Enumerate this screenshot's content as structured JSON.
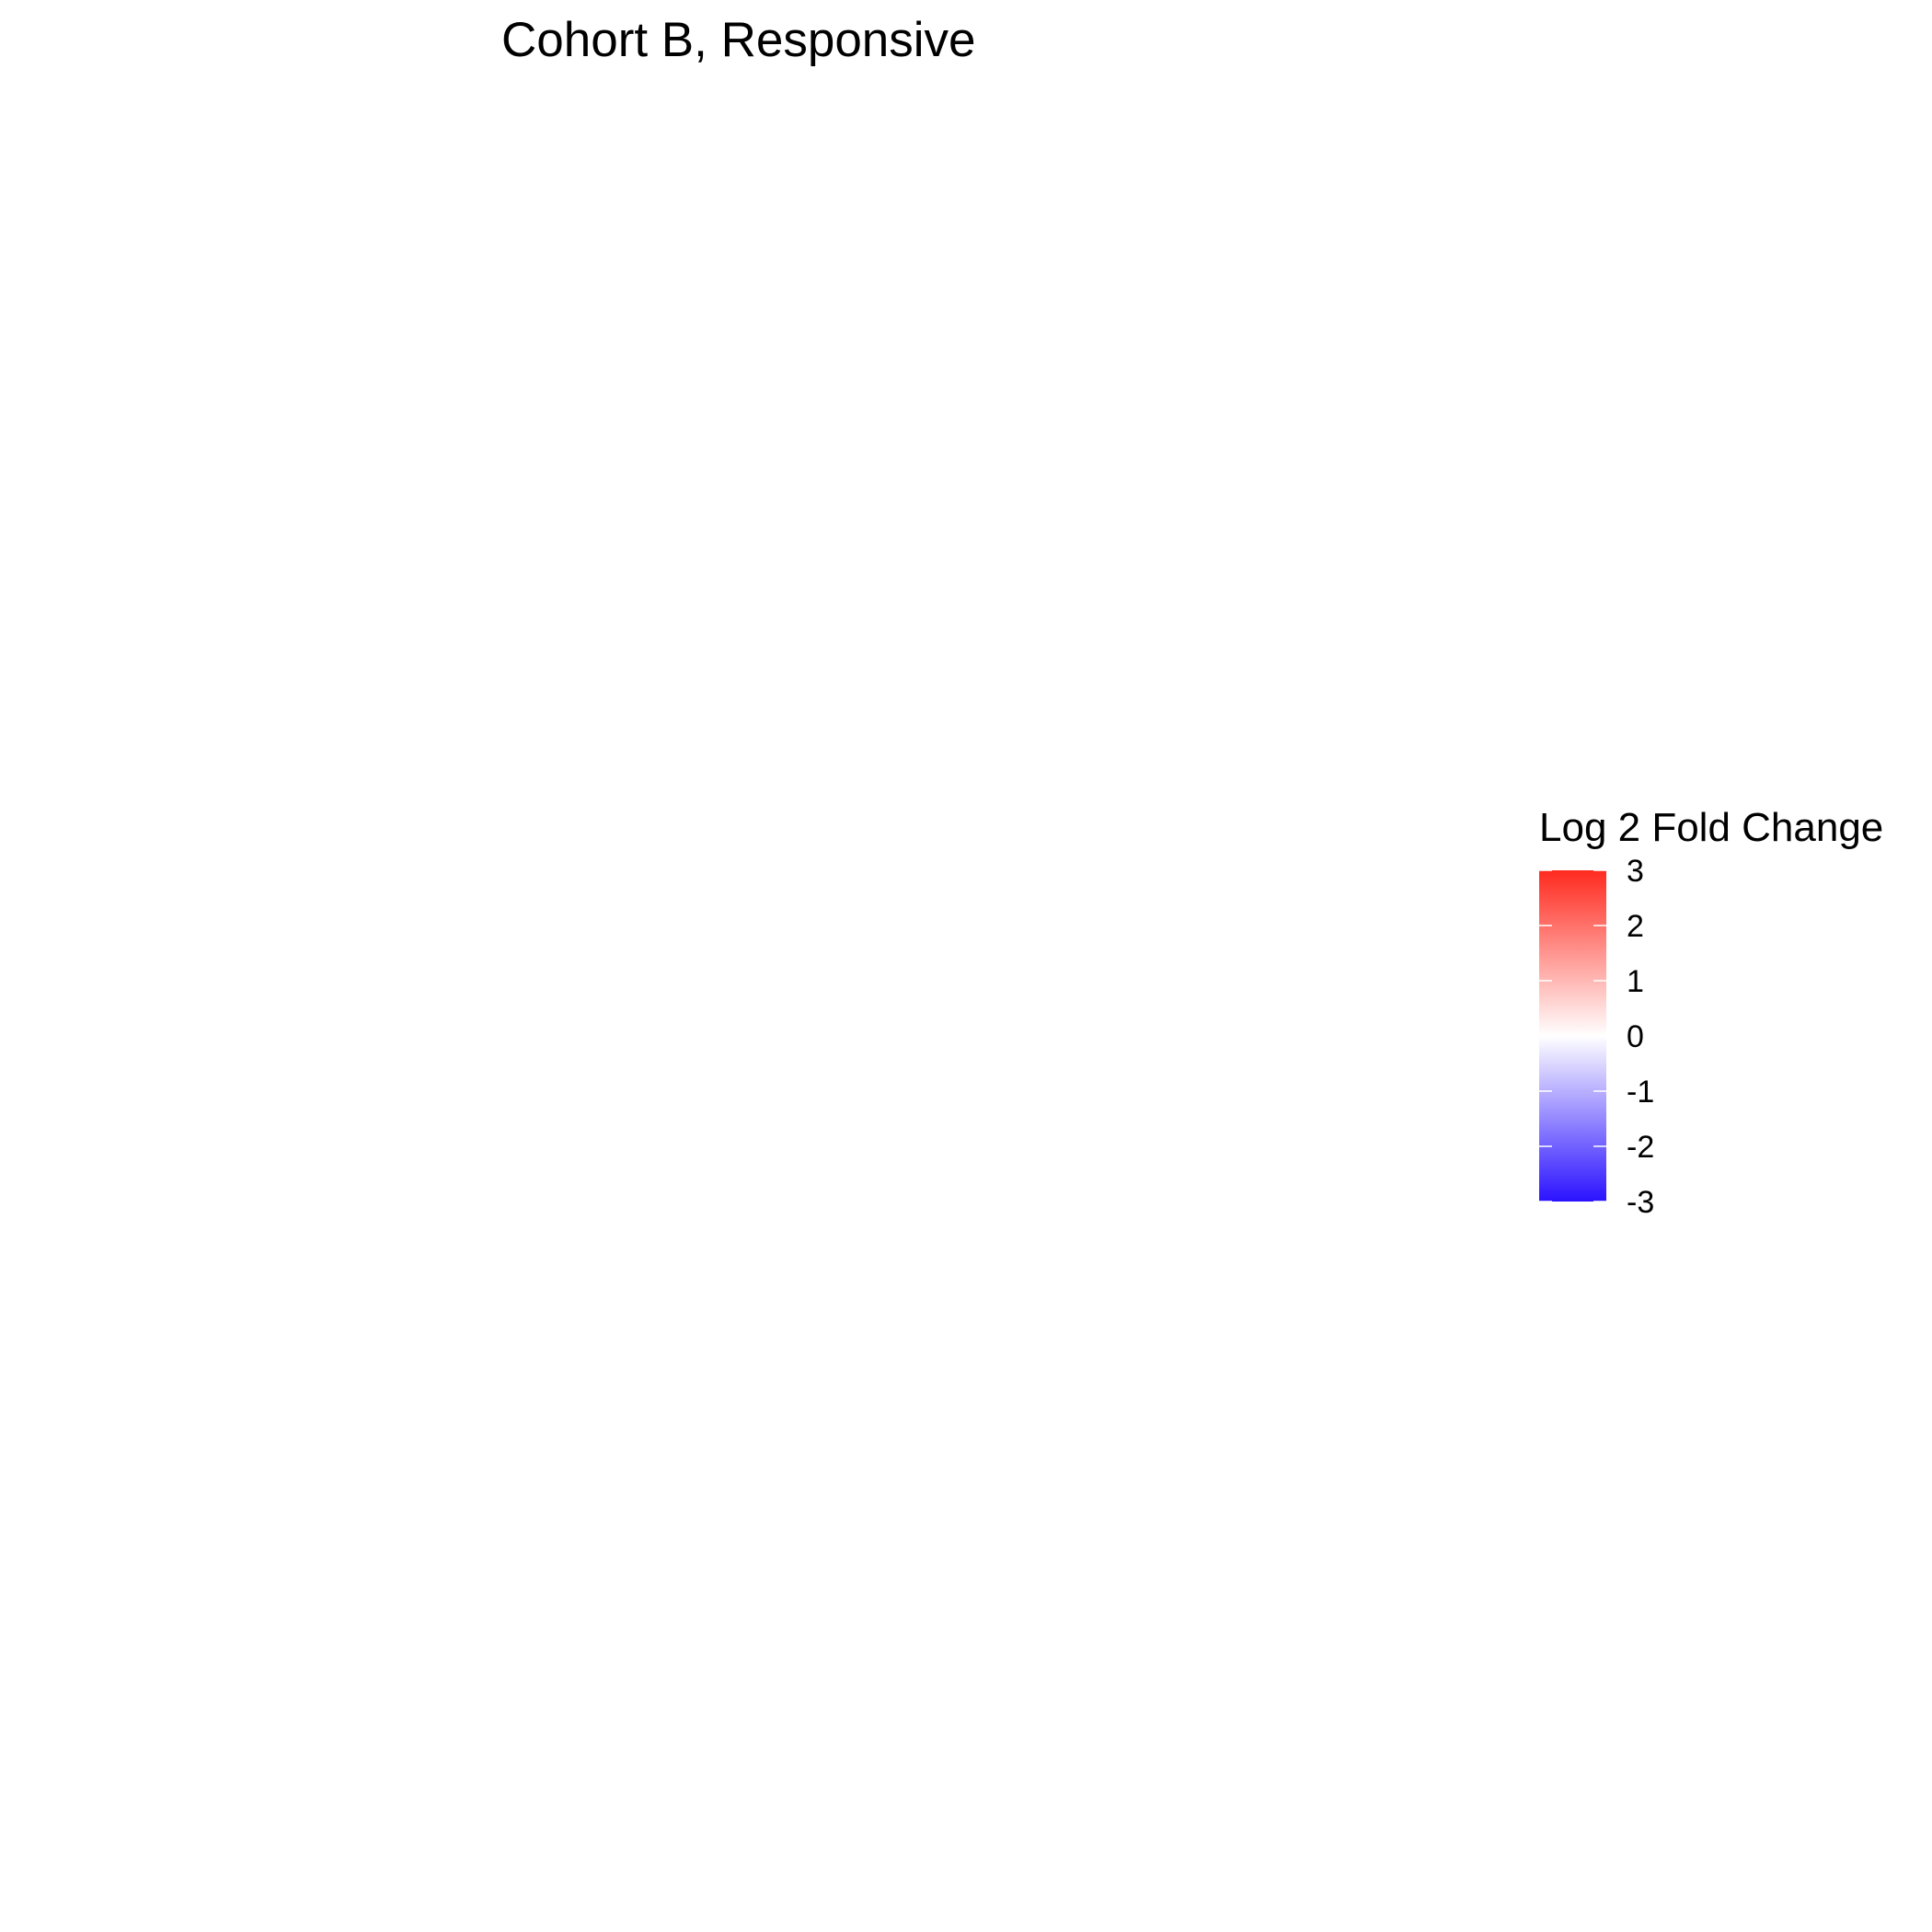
{
  "title": "Cohort B, Responsive",
  "chart_data": {
    "type": "heatmap",
    "title": "Cohort B, Responsive",
    "cells": [],
    "legend": {
      "title": "Log 2 Fold Change",
      "placement": "right",
      "range": [
        -3,
        3
      ],
      "ticks": [
        3,
        2,
        1,
        0,
        -1,
        -2,
        -3
      ],
      "tick_labels": [
        "3",
        "2",
        "1",
        "0",
        "-1",
        "-2",
        "-3"
      ],
      "colors": {
        "high": "#ff2a1f",
        "mid": "#ffffff",
        "low": "#2b12ff"
      }
    },
    "grid": false
  }
}
